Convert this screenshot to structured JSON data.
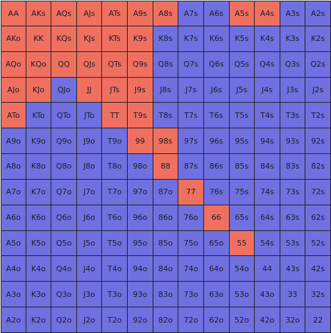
{
  "colors": {
    "action": "#f07060",
    "other": "#7070e0",
    "grid_line": "#1f1f1f",
    "label": "#1b1b2a"
  },
  "hands": [
    [
      {
        "label": "AA",
        "action": "raise"
      },
      {
        "label": "AKs",
        "action": "raise"
      },
      {
        "label": "AQs",
        "action": "raise"
      },
      {
        "label": "AJs",
        "action": "raise"
      },
      {
        "label": "ATs",
        "action": "raise"
      },
      {
        "label": "A9s",
        "action": "raise"
      },
      {
        "label": "A8s",
        "action": "raise"
      },
      {
        "label": "A7s",
        "action": "fold"
      },
      {
        "label": "A6s",
        "action": "fold"
      },
      {
        "label": "A5s",
        "action": "raise"
      },
      {
        "label": "A4s",
        "action": "raise"
      },
      {
        "label": "A3s",
        "action": "fold"
      },
      {
        "label": "A2s",
        "action": "fold"
      }
    ],
    [
      {
        "label": "AKo",
        "action": "raise"
      },
      {
        "label": "KK",
        "action": "raise"
      },
      {
        "label": "KQs",
        "action": "raise"
      },
      {
        "label": "KJs",
        "action": "raise"
      },
      {
        "label": "KTs",
        "action": "raise"
      },
      {
        "label": "K9s",
        "action": "raise"
      },
      {
        "label": "K8s",
        "action": "fold"
      },
      {
        "label": "K7s",
        "action": "fold"
      },
      {
        "label": "K6s",
        "action": "fold"
      },
      {
        "label": "K5s",
        "action": "fold"
      },
      {
        "label": "K4s",
        "action": "fold"
      },
      {
        "label": "K3s",
        "action": "fold"
      },
      {
        "label": "K2s",
        "action": "fold"
      }
    ],
    [
      {
        "label": "AQo",
        "action": "raise"
      },
      {
        "label": "KQo",
        "action": "raise"
      },
      {
        "label": "QQ",
        "action": "raise"
      },
      {
        "label": "QJs",
        "action": "raise"
      },
      {
        "label": "QTs",
        "action": "raise"
      },
      {
        "label": "Q9s",
        "action": "raise"
      },
      {
        "label": "Q8s",
        "action": "fold"
      },
      {
        "label": "Q7s",
        "action": "fold"
      },
      {
        "label": "Q6s",
        "action": "fold"
      },
      {
        "label": "Q5s",
        "action": "fold"
      },
      {
        "label": "Q4s",
        "action": "fold"
      },
      {
        "label": "Q3s",
        "action": "fold"
      },
      {
        "label": "Q2s",
        "action": "fold"
      }
    ],
    [
      {
        "label": "AJo",
        "action": "raise"
      },
      {
        "label": "KJo",
        "action": "raise"
      },
      {
        "label": "QJo",
        "action": "fold"
      },
      {
        "label": "JJ",
        "action": "raise"
      },
      {
        "label": "JTs",
        "action": "raise"
      },
      {
        "label": "J9s",
        "action": "raise"
      },
      {
        "label": "J8s",
        "action": "fold"
      },
      {
        "label": "J7s",
        "action": "fold"
      },
      {
        "label": "J6s",
        "action": "fold"
      },
      {
        "label": "J5s",
        "action": "fold"
      },
      {
        "label": "J4s",
        "action": "fold"
      },
      {
        "label": "J3s",
        "action": "fold"
      },
      {
        "label": "J2s",
        "action": "fold"
      }
    ],
    [
      {
        "label": "ATo",
        "action": "raise"
      },
      {
        "label": "KTo",
        "action": "fold"
      },
      {
        "label": "QTo",
        "action": "fold"
      },
      {
        "label": "JTo",
        "action": "fold"
      },
      {
        "label": "TT",
        "action": "raise"
      },
      {
        "label": "T9s",
        "action": "raise"
      },
      {
        "label": "T8s",
        "action": "fold"
      },
      {
        "label": "T7s",
        "action": "fold"
      },
      {
        "label": "T6s",
        "action": "fold"
      },
      {
        "label": "T5s",
        "action": "fold"
      },
      {
        "label": "T4s",
        "action": "fold"
      },
      {
        "label": "T3s",
        "action": "fold"
      },
      {
        "label": "T2s",
        "action": "fold"
      }
    ],
    [
      {
        "label": "A9o",
        "action": "fold"
      },
      {
        "label": "K9o",
        "action": "fold"
      },
      {
        "label": "Q9o",
        "action": "fold"
      },
      {
        "label": "J9o",
        "action": "fold"
      },
      {
        "label": "T9o",
        "action": "fold"
      },
      {
        "label": "99",
        "action": "raise"
      },
      {
        "label": "98s",
        "action": "raise"
      },
      {
        "label": "97s",
        "action": "fold"
      },
      {
        "label": "96s",
        "action": "fold"
      },
      {
        "label": "95s",
        "action": "fold"
      },
      {
        "label": "94s",
        "action": "fold"
      },
      {
        "label": "93s",
        "action": "fold"
      },
      {
        "label": "92s",
        "action": "fold"
      }
    ],
    [
      {
        "label": "A8o",
        "action": "fold"
      },
      {
        "label": "K8o",
        "action": "fold"
      },
      {
        "label": "Q8o",
        "action": "fold"
      },
      {
        "label": "J8o",
        "action": "fold"
      },
      {
        "label": "T8o",
        "action": "fold"
      },
      {
        "label": "98o",
        "action": "fold"
      },
      {
        "label": "88",
        "action": "raise"
      },
      {
        "label": "87s",
        "action": "fold"
      },
      {
        "label": "86s",
        "action": "fold"
      },
      {
        "label": "85s",
        "action": "fold"
      },
      {
        "label": "84s",
        "action": "fold"
      },
      {
        "label": "83s",
        "action": "fold"
      },
      {
        "label": "82s",
        "action": "fold"
      }
    ],
    [
      {
        "label": "A7o",
        "action": "fold"
      },
      {
        "label": "K7o",
        "action": "fold"
      },
      {
        "label": "Q7o",
        "action": "fold"
      },
      {
        "label": "J7o",
        "action": "fold"
      },
      {
        "label": "T7o",
        "action": "fold"
      },
      {
        "label": "97o",
        "action": "fold"
      },
      {
        "label": "87o",
        "action": "fold"
      },
      {
        "label": "77",
        "action": "raise"
      },
      {
        "label": "76s",
        "action": "fold"
      },
      {
        "label": "75s",
        "action": "fold"
      },
      {
        "label": "74s",
        "action": "fold"
      },
      {
        "label": "73s",
        "action": "fold"
      },
      {
        "label": "72s",
        "action": "fold"
      }
    ],
    [
      {
        "label": "A6o",
        "action": "fold"
      },
      {
        "label": "K6o",
        "action": "fold"
      },
      {
        "label": "Q6o",
        "action": "fold"
      },
      {
        "label": "J6o",
        "action": "fold"
      },
      {
        "label": "T6o",
        "action": "fold"
      },
      {
        "label": "96o",
        "action": "fold"
      },
      {
        "label": "86o",
        "action": "fold"
      },
      {
        "label": "76o",
        "action": "fold"
      },
      {
        "label": "66",
        "action": "raise"
      },
      {
        "label": "65s",
        "action": "fold"
      },
      {
        "label": "64s",
        "action": "fold"
      },
      {
        "label": "63s",
        "action": "fold"
      },
      {
        "label": "62s",
        "action": "fold"
      }
    ],
    [
      {
        "label": "A5o",
        "action": "fold"
      },
      {
        "label": "K5o",
        "action": "fold"
      },
      {
        "label": "Q5o",
        "action": "fold"
      },
      {
        "label": "J5o",
        "action": "fold"
      },
      {
        "label": "T5o",
        "action": "fold"
      },
      {
        "label": "95o",
        "action": "fold"
      },
      {
        "label": "85o",
        "action": "fold"
      },
      {
        "label": "75o",
        "action": "fold"
      },
      {
        "label": "65o",
        "action": "fold"
      },
      {
        "label": "55",
        "action": "raise"
      },
      {
        "label": "54s",
        "action": "fold"
      },
      {
        "label": "53s",
        "action": "fold"
      },
      {
        "label": "52s",
        "action": "fold"
      }
    ],
    [
      {
        "label": "A4o",
        "action": "fold"
      },
      {
        "label": "K4o",
        "action": "fold"
      },
      {
        "label": "Q4o",
        "action": "fold"
      },
      {
        "label": "J4o",
        "action": "fold"
      },
      {
        "label": "T4o",
        "action": "fold"
      },
      {
        "label": "94o",
        "action": "fold"
      },
      {
        "label": "84o",
        "action": "fold"
      },
      {
        "label": "74o",
        "action": "fold"
      },
      {
        "label": "64o",
        "action": "fold"
      },
      {
        "label": "54o",
        "action": "fold"
      },
      {
        "label": "44",
        "action": "fold"
      },
      {
        "label": "43s",
        "action": "fold"
      },
      {
        "label": "42s",
        "action": "fold"
      }
    ],
    [
      {
        "label": "A3o",
        "action": "fold"
      },
      {
        "label": "K3o",
        "action": "fold"
      },
      {
        "label": "Q3o",
        "action": "fold"
      },
      {
        "label": "J3o",
        "action": "fold"
      },
      {
        "label": "T3o",
        "action": "fold"
      },
      {
        "label": "93o",
        "action": "fold"
      },
      {
        "label": "83o",
        "action": "fold"
      },
      {
        "label": "73o",
        "action": "fold"
      },
      {
        "label": "63o",
        "action": "fold"
      },
      {
        "label": "53o",
        "action": "fold"
      },
      {
        "label": "43o",
        "action": "fold"
      },
      {
        "label": "33",
        "action": "fold"
      },
      {
        "label": "32s",
        "action": "fold"
      }
    ],
    [
      {
        "label": "A2o",
        "action": "fold"
      },
      {
        "label": "K2o",
        "action": "fold"
      },
      {
        "label": "Q2o",
        "action": "fold"
      },
      {
        "label": "J2o",
        "action": "fold"
      },
      {
        "label": "T2o",
        "action": "fold"
      },
      {
        "label": "92o",
        "action": "fold"
      },
      {
        "label": "82o",
        "action": "fold"
      },
      {
        "label": "72o",
        "action": "fold"
      },
      {
        "label": "62o",
        "action": "fold"
      },
      {
        "label": "52o",
        "action": "fold"
      },
      {
        "label": "42o",
        "action": "fold"
      },
      {
        "label": "32o",
        "action": "fold"
      },
      {
        "label": "22",
        "action": "fold"
      }
    ]
  ]
}
